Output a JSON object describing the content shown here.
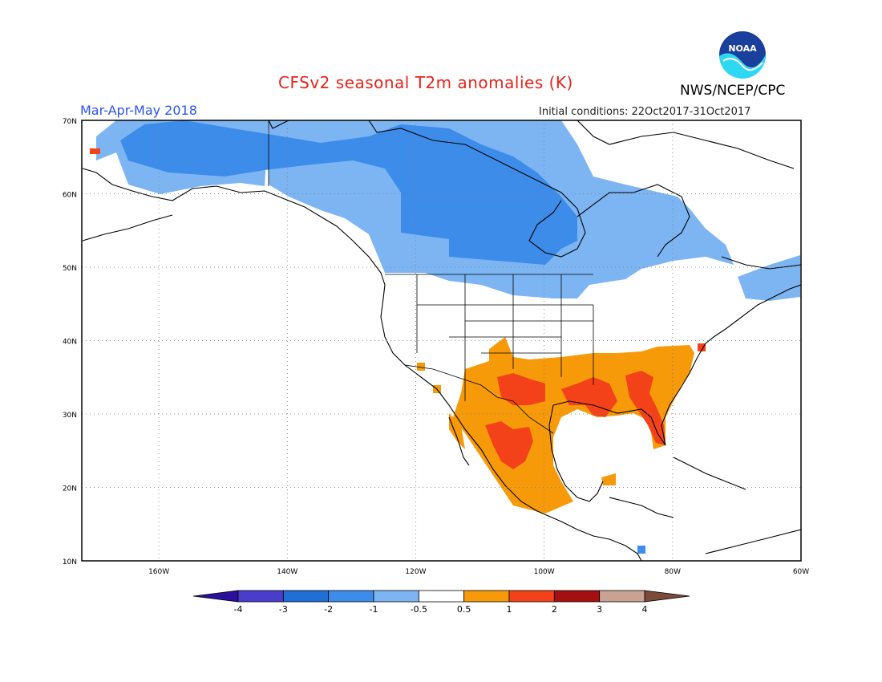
{
  "title": "CFSv2 seasonal T2m anomalies (K)",
  "agency": "NWS/NCEP/CPC",
  "logo_text": "NOAA",
  "season": "Mar-Apr-May 2018",
  "initial_conditions": "Initial conditions: 22Oct2017-31Oct2017",
  "map": {
    "lon_range": [
      -172,
      -60
    ],
    "lat_range": [
      10,
      70
    ],
    "lat_ticks": [
      {
        "lat": 70,
        "label": "70N"
      },
      {
        "lat": 60,
        "label": "60N"
      },
      {
        "lat": 50,
        "label": "50N"
      },
      {
        "lat": 40,
        "label": "40N"
      },
      {
        "lat": 30,
        "label": "30N"
      },
      {
        "lat": 20,
        "label": "20N"
      },
      {
        "lat": 10,
        "label": "10N"
      }
    ],
    "lon_ticks": [
      {
        "lon": -160,
        "label": "160W"
      },
      {
        "lon": -140,
        "label": "140W"
      },
      {
        "lon": -120,
        "label": "120W"
      },
      {
        "lon": -100,
        "label": "100W"
      },
      {
        "lon": -80,
        "label": "80W"
      },
      {
        "lon": -60,
        "label": "60W"
      }
    ],
    "grid": true
  },
  "colorbar": {
    "labels": [
      "-4",
      "-3",
      "-2",
      "-1",
      "-0.5",
      "0.5",
      "1",
      "2",
      "3",
      "4"
    ],
    "colors": [
      "#2a0e9c",
      "#4b3dcc",
      "#1f6fd6",
      "#3d8cea",
      "#7db5f3",
      "#ffffff",
      "#f79a0a",
      "#f3421a",
      "#a50f0f",
      "#c9a294",
      "#7b4a38"
    ]
  },
  "anomaly_colors": {
    "cold_weak": "#7db5f3",
    "cold_moderate": "#3d8cea",
    "warm_weak": "#f79a0a",
    "warm_moderate": "#f3421a"
  }
}
